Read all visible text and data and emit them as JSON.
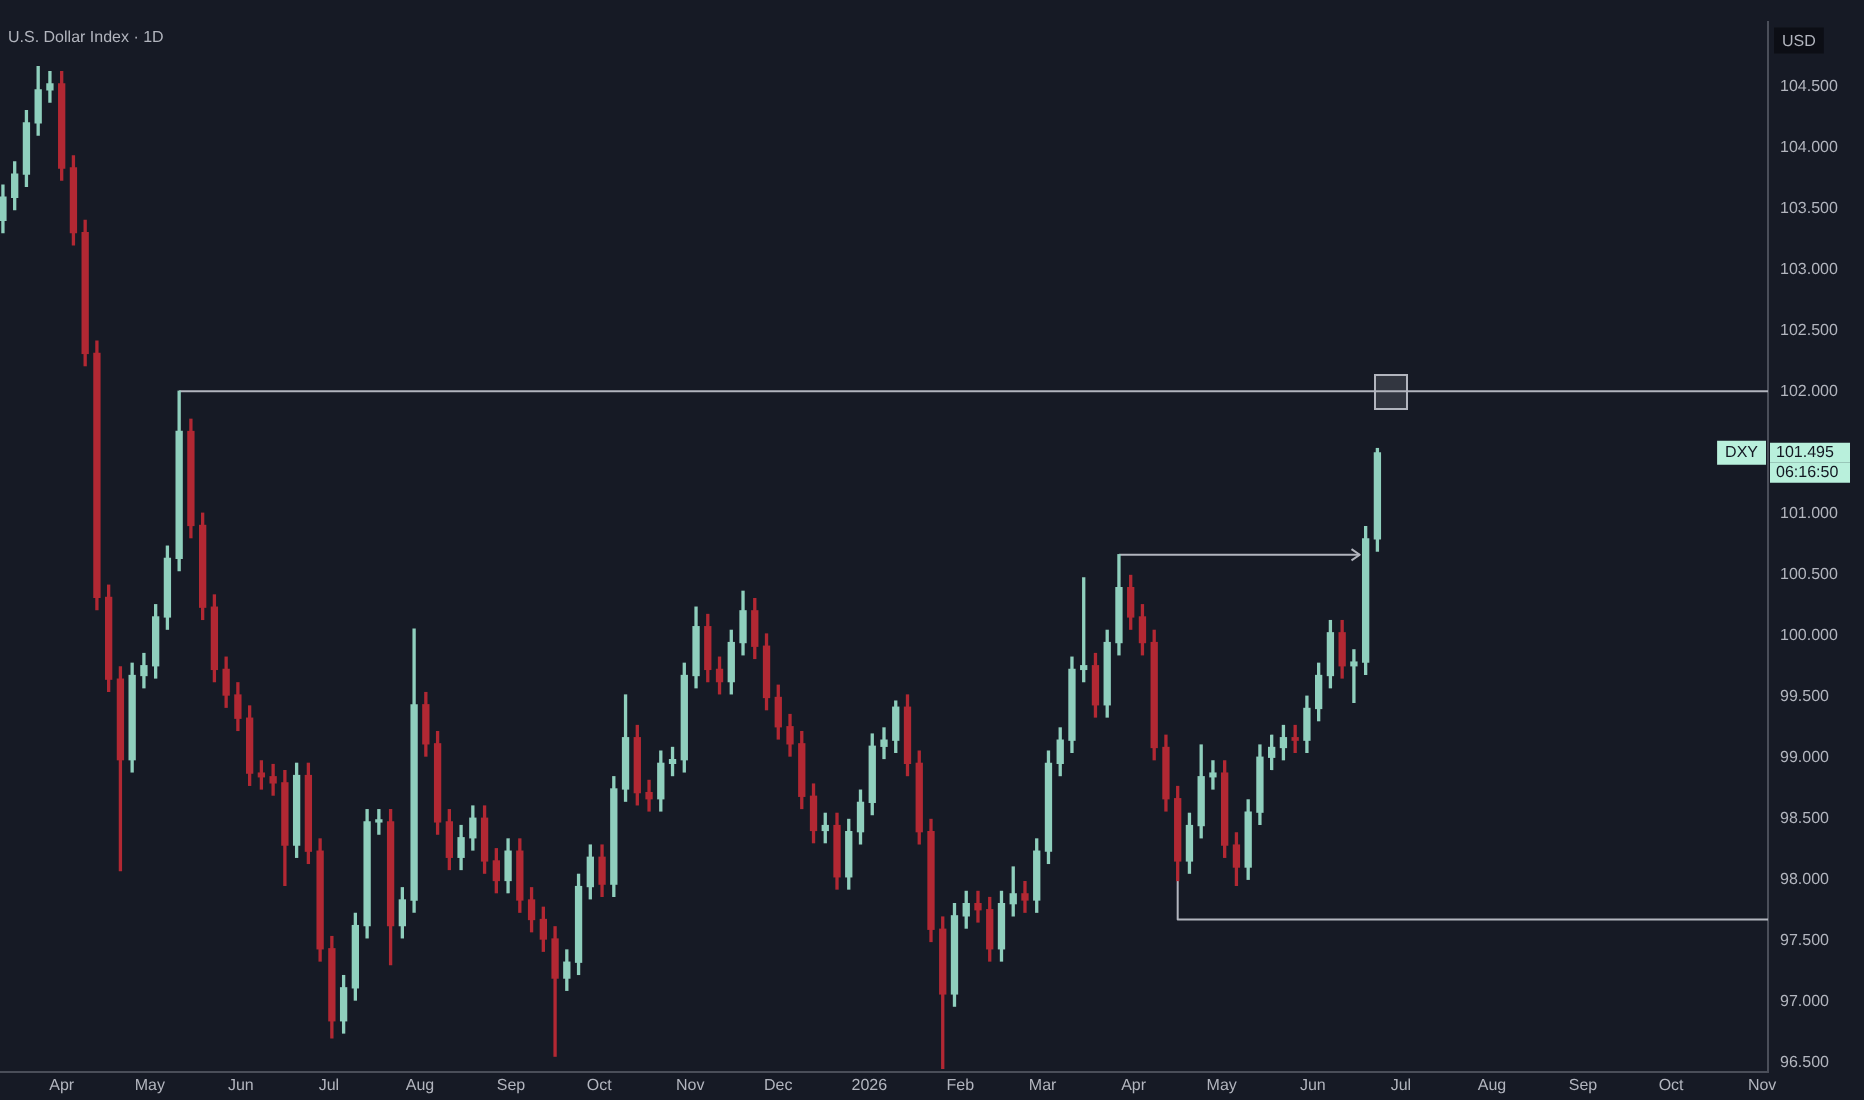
{
  "chart_data": {
    "type": "candlestick",
    "title": "U.S. Dollar Index · 1D",
    "ylabel": "USD",
    "x": [
      "2025-03-12",
      "2025-03-16",
      "2025-03-20",
      "2025-03-24",
      "2025-03-28",
      "2025-04-01",
      "2025-04-05",
      "2025-04-09",
      "2025-04-13",
      "2025-04-17",
      "2025-04-21",
      "2025-04-25",
      "2025-04-29",
      "2025-05-03",
      "2025-05-07",
      "2025-05-11",
      "2025-05-15",
      "2025-05-19",
      "2025-05-23",
      "2025-05-27",
      "2025-05-31",
      "2025-06-04",
      "2025-06-08",
      "2025-06-12",
      "2025-06-16",
      "2025-06-20",
      "2025-06-24",
      "2025-06-28",
      "2025-07-02",
      "2025-07-06",
      "2025-07-10",
      "2025-07-14",
      "2025-07-18",
      "2025-07-22",
      "2025-07-26",
      "2025-07-30",
      "2025-08-03",
      "2025-08-07",
      "2025-08-11",
      "2025-08-15",
      "2025-08-19",
      "2025-08-23",
      "2025-08-27",
      "2025-08-31",
      "2025-09-04",
      "2025-09-08",
      "2025-09-12",
      "2025-09-16",
      "2025-09-20",
      "2025-09-24",
      "2025-09-28",
      "2025-10-02",
      "2025-10-06",
      "2025-10-10",
      "2025-10-14",
      "2025-10-18",
      "2025-10-22",
      "2025-10-26",
      "2025-10-30",
      "2025-11-03",
      "2025-11-07",
      "2025-11-11",
      "2025-11-15",
      "2025-11-19",
      "2025-11-23",
      "2025-11-27",
      "2025-12-01",
      "2025-12-05",
      "2025-12-09",
      "2025-12-13",
      "2025-12-17",
      "2025-12-21",
      "2025-12-25",
      "2025-12-29",
      "2026-01-02",
      "2026-01-06",
      "2026-01-10",
      "2026-01-14",
      "2026-01-18",
      "2026-01-22",
      "2026-01-26",
      "2026-01-30",
      "2026-02-03",
      "2026-02-07",
      "2026-02-11",
      "2026-02-15",
      "2026-02-19",
      "2026-02-23",
      "2026-02-27",
      "2026-03-03",
      "2026-03-07",
      "2026-03-11",
      "2026-03-15",
      "2026-03-19",
      "2026-03-23",
      "2026-03-27",
      "2026-03-31",
      "2026-04-04",
      "2026-04-08",
      "2026-04-12",
      "2026-04-16",
      "2026-04-20",
      "2026-04-24",
      "2026-04-28",
      "2026-05-02",
      "2026-05-06",
      "2026-05-10",
      "2026-05-14",
      "2026-05-18",
      "2026-05-22",
      "2026-05-26",
      "2026-05-30",
      "2026-06-03",
      "2026-06-07",
      "2026-06-11",
      "2026-06-15",
      "2026-06-19",
      "2026-06-23"
    ],
    "ohlc": [
      [
        103.4,
        103.69,
        103.3,
        103.59
      ],
      [
        103.59,
        103.88,
        103.49,
        103.78
      ],
      [
        103.78,
        104.3,
        103.68,
        104.2
      ],
      [
        104.2,
        104.66,
        104.1,
        104.47
      ],
      [
        104.47,
        104.62,
        104.37,
        104.52
      ],
      [
        104.52,
        104.62,
        103.73,
        103.83
      ],
      [
        103.83,
        103.93,
        103.2,
        103.3
      ],
      [
        103.3,
        103.4,
        102.21,
        102.31
      ],
      [
        102.31,
        102.41,
        100.21,
        100.31
      ],
      [
        100.31,
        100.41,
        99.54,
        99.64
      ],
      [
        99.64,
        99.74,
        98.07,
        98.98
      ],
      [
        98.98,
        99.77,
        98.88,
        99.67
      ],
      [
        99.67,
        99.85,
        99.57,
        99.75
      ],
      [
        99.75,
        100.25,
        99.65,
        100.15
      ],
      [
        100.15,
        100.73,
        100.05,
        100.63
      ],
      [
        100.63,
        102.0,
        100.53,
        101.67
      ],
      [
        101.67,
        101.77,
        100.8,
        100.9
      ],
      [
        100.9,
        101.0,
        100.13,
        100.23
      ],
      [
        100.23,
        100.33,
        99.62,
        99.72
      ],
      [
        99.72,
        99.82,
        99.41,
        99.51
      ],
      [
        99.51,
        99.61,
        99.22,
        99.32
      ],
      [
        99.32,
        99.42,
        98.77,
        98.87
      ],
      [
        98.87,
        98.97,
        98.74,
        98.84
      ],
      [
        98.84,
        98.94,
        98.69,
        98.79
      ],
      [
        98.79,
        98.89,
        97.95,
        98.28
      ],
      [
        98.28,
        98.95,
        98.18,
        98.85
      ],
      [
        98.85,
        98.95,
        98.13,
        98.23
      ],
      [
        98.23,
        98.33,
        97.33,
        97.43
      ],
      [
        97.43,
        97.53,
        96.7,
        96.84
      ],
      [
        96.84,
        97.21,
        96.74,
        97.11
      ],
      [
        97.11,
        97.72,
        97.01,
        97.62
      ],
      [
        97.62,
        98.57,
        97.52,
        98.47
      ],
      [
        98.47,
        98.57,
        98.37,
        98.47
      ],
      [
        98.47,
        98.57,
        97.3,
        97.62
      ],
      [
        97.62,
        97.93,
        97.52,
        97.83
      ],
      [
        97.83,
        100.05,
        97.73,
        99.43
      ],
      [
        99.43,
        99.53,
        99.01,
        99.11
      ],
      [
        99.11,
        99.21,
        98.37,
        98.47
      ],
      [
        98.47,
        98.57,
        98.08,
        98.18
      ],
      [
        98.18,
        98.44,
        98.08,
        98.34
      ],
      [
        98.34,
        98.6,
        98.24,
        98.5
      ],
      [
        98.5,
        98.6,
        98.05,
        98.15
      ],
      [
        98.15,
        98.25,
        97.89,
        97.99
      ],
      [
        97.99,
        98.33,
        97.89,
        98.23
      ],
      [
        98.23,
        98.33,
        97.73,
        97.83
      ],
      [
        97.83,
        97.93,
        97.57,
        97.67
      ],
      [
        97.67,
        97.77,
        97.41,
        97.51
      ],
      [
        97.51,
        97.61,
        96.55,
        97.19
      ],
      [
        97.19,
        97.42,
        97.09,
        97.32
      ],
      [
        97.32,
        98.04,
        97.22,
        97.94
      ],
      [
        97.94,
        98.28,
        97.84,
        98.18
      ],
      [
        98.18,
        98.28,
        97.86,
        97.96
      ],
      [
        97.96,
        98.84,
        97.86,
        98.74
      ],
      [
        98.74,
        99.51,
        98.64,
        99.16
      ],
      [
        99.16,
        99.26,
        98.61,
        98.71
      ],
      [
        98.71,
        98.81,
        98.56,
        98.66
      ],
      [
        98.66,
        99.05,
        98.56,
        98.95
      ],
      [
        98.95,
        99.08,
        98.85,
        98.98
      ],
      [
        98.98,
        99.77,
        98.88,
        99.67
      ],
      [
        99.67,
        100.23,
        99.57,
        100.07
      ],
      [
        100.07,
        100.17,
        99.62,
        99.72
      ],
      [
        99.72,
        99.82,
        99.52,
        99.62
      ],
      [
        99.62,
        100.04,
        99.52,
        99.94
      ],
      [
        99.94,
        100.36,
        99.84,
        100.2
      ],
      [
        100.2,
        100.3,
        99.81,
        99.91
      ],
      [
        99.91,
        100.01,
        99.39,
        99.49
      ],
      [
        99.49,
        99.59,
        99.15,
        99.25
      ],
      [
        99.25,
        99.35,
        99.01,
        99.11
      ],
      [
        99.11,
        99.21,
        98.58,
        98.68
      ],
      [
        98.68,
        98.78,
        98.3,
        98.4
      ],
      [
        98.4,
        98.54,
        98.3,
        98.44
      ],
      [
        98.44,
        98.54,
        97.92,
        98.02
      ],
      [
        98.02,
        98.49,
        97.92,
        98.39
      ],
      [
        98.39,
        98.73,
        98.29,
        98.63
      ],
      [
        98.63,
        99.19,
        98.53,
        99.09
      ],
      [
        99.09,
        99.24,
        98.99,
        99.14
      ],
      [
        99.14,
        99.46,
        99.04,
        99.41
      ],
      [
        99.41,
        99.51,
        98.85,
        98.95
      ],
      [
        98.95,
        99.05,
        98.29,
        98.39
      ],
      [
        98.39,
        98.49,
        97.49,
        97.59
      ],
      [
        97.59,
        97.69,
        96.45,
        97.06
      ],
      [
        97.06,
        97.8,
        96.96,
        97.7
      ],
      [
        97.7,
        97.9,
        97.6,
        97.8
      ],
      [
        97.8,
        97.9,
        97.65,
        97.75
      ],
      [
        97.75,
        97.85,
        97.33,
        97.43
      ],
      [
        97.43,
        97.9,
        97.33,
        97.8
      ],
      [
        97.8,
        98.1,
        97.7,
        97.88
      ],
      [
        97.88,
        97.98,
        97.73,
        97.83
      ],
      [
        97.83,
        98.33,
        97.73,
        98.23
      ],
      [
        98.23,
        99.05,
        98.13,
        98.95
      ],
      [
        98.95,
        99.24,
        98.85,
        99.14
      ],
      [
        99.14,
        99.82,
        99.04,
        99.72
      ],
      [
        99.72,
        100.47,
        99.62,
        99.75
      ],
      [
        99.75,
        99.85,
        99.33,
        99.43
      ],
      [
        99.43,
        100.04,
        99.33,
        99.94
      ],
      [
        99.94,
        100.66,
        99.84,
        100.39
      ],
      [
        100.39,
        100.49,
        100.05,
        100.15
      ],
      [
        100.15,
        100.25,
        99.84,
        99.94
      ],
      [
        99.94,
        100.04,
        98.98,
        99.08
      ],
      [
        99.08,
        99.18,
        98.56,
        98.66
      ],
      [
        98.66,
        98.76,
        97.99,
        98.15
      ],
      [
        98.15,
        98.54,
        98.05,
        98.44
      ],
      [
        98.44,
        99.1,
        98.34,
        98.84
      ],
      [
        98.84,
        98.97,
        98.74,
        98.87
      ],
      [
        98.87,
        98.97,
        98.18,
        98.28
      ],
      [
        98.28,
        98.38,
        97.95,
        98.1
      ],
      [
        98.1,
        98.65,
        98.0,
        98.55
      ],
      [
        98.55,
        99.1,
        98.45,
        99.0
      ],
      [
        99.0,
        99.18,
        98.9,
        99.08
      ],
      [
        99.08,
        99.26,
        98.98,
        99.16
      ],
      [
        99.16,
        99.26,
        99.04,
        99.14
      ],
      [
        99.14,
        99.5,
        99.04,
        99.4
      ],
      [
        99.4,
        99.77,
        99.3,
        99.67
      ],
      [
        99.67,
        100.12,
        99.57,
        100.02
      ],
      [
        100.02,
        100.12,
        99.65,
        99.75
      ],
      [
        99.75,
        99.88,
        99.45,
        99.78
      ],
      [
        99.78,
        100.89,
        99.68,
        100.79
      ],
      [
        100.79,
        101.53,
        100.69,
        101.495
      ]
    ],
    "colors": [
      "#8fcfbd",
      "#8fcfbd",
      "#8fcfbd",
      "#8fcfbd",
      "#8fcfbd",
      "#b22833",
      "#b22833",
      "#b22833",
      "#b22833",
      "#b22833",
      "#b22833",
      "#8fcfbd",
      "#8fcfbd",
      "#8fcfbd",
      "#8fcfbd",
      "#8fcfbd",
      "#b22833",
      "#b22833",
      "#b22833",
      "#b22833",
      "#b22833",
      "#b22833",
      "#b22833",
      "#b22833",
      "#b22833",
      "#8fcfbd",
      "#b22833",
      "#b22833",
      "#b22833",
      "#8fcfbd",
      "#8fcfbd",
      "#8fcfbd",
      "#8fcfbd",
      "#b22833",
      "#8fcfbd",
      "#8fcfbd",
      "#b22833",
      "#b22833",
      "#b22833",
      "#8fcfbd",
      "#8fcfbd",
      "#b22833",
      "#b22833",
      "#8fcfbd",
      "#b22833",
      "#b22833",
      "#b22833",
      "#b22833",
      "#8fcfbd",
      "#8fcfbd",
      "#8fcfbd",
      "#b22833",
      "#8fcfbd",
      "#8fcfbd",
      "#b22833",
      "#b22833",
      "#8fcfbd",
      "#8fcfbd",
      "#8fcfbd",
      "#8fcfbd",
      "#b22833",
      "#b22833",
      "#8fcfbd",
      "#8fcfbd",
      "#b22833",
      "#b22833",
      "#b22833",
      "#b22833",
      "#b22833",
      "#b22833",
      "#8fcfbd",
      "#b22833",
      "#8fcfbd",
      "#8fcfbd",
      "#8fcfbd",
      "#8fcfbd",
      "#8fcfbd",
      "#b22833",
      "#b22833",
      "#b22833",
      "#b22833",
      "#8fcfbd",
      "#8fcfbd",
      "#b22833",
      "#b22833",
      "#8fcfbd",
      "#8fcfbd",
      "#b22833",
      "#8fcfbd",
      "#8fcfbd",
      "#8fcfbd",
      "#8fcfbd",
      "#8fcfbd",
      "#b22833",
      "#8fcfbd",
      "#8fcfbd",
      "#b22833",
      "#b22833",
      "#b22833",
      "#b22833",
      "#b22833",
      "#8fcfbd",
      "#8fcfbd",
      "#8fcfbd",
      "#b22833",
      "#b22833",
      "#8fcfbd",
      "#8fcfbd",
      "#8fcfbd",
      "#8fcfbd",
      "#b22833",
      "#8fcfbd",
      "#8fcfbd",
      "#8fcfbd",
      "#b22833",
      "#8fcfbd",
      "#8fcfbd",
      "#8fcfbd"
    ],
    "series": [
      {
        "type": "line",
        "color": "#b2b5be",
        "x": [
          "2025-05-11",
          "2026-11-03"
        ],
        "values": [
          102.0,
          102.0
        ]
      },
      {
        "type": "line",
        "color": "#b2b5be",
        "x": [
          "2026-03-27",
          "2026-06-17"
        ],
        "values": [
          100.66,
          100.66
        ]
      },
      {
        "type": "line",
        "color": "#b2b5be",
        "x": [
          "2026-04-16",
          "2026-04-16",
          "2026-11-03"
        ],
        "values": [
          97.99,
          97.67,
          97.67
        ]
      }
    ],
    "xlim": [
      "2025-03-11",
      "2026-11-03"
    ],
    "xticks": [
      {
        "value": "2025-04-01",
        "label": "Apr"
      },
      {
        "value": "2025-05-01",
        "label": "May"
      },
      {
        "value": "2025-06-01",
        "label": "Jun"
      },
      {
        "value": "2025-07-01",
        "label": "Jul"
      },
      {
        "value": "2025-08-01",
        "label": "Aug"
      },
      {
        "value": "2025-09-01",
        "label": "Sep"
      },
      {
        "value": "2025-10-01",
        "label": "Oct"
      },
      {
        "value": "2025-11-01",
        "label": "Nov"
      },
      {
        "value": "2025-12-01",
        "label": "Dec"
      },
      {
        "value": "2026-01-01",
        "label": "2026"
      },
      {
        "value": "2026-02-01",
        "label": "Feb"
      },
      {
        "value": "2026-03-01",
        "label": "Mar"
      },
      {
        "value": "2026-04-01",
        "label": "Apr"
      },
      {
        "value": "2026-05-01",
        "label": "May"
      },
      {
        "value": "2026-06-01",
        "label": "Jun"
      },
      {
        "value": "2026-07-01",
        "label": "Jul"
      },
      {
        "value": "2026-08-01",
        "label": "Aug"
      },
      {
        "value": "2026-09-01",
        "label": "Sep"
      },
      {
        "value": "2026-10-01",
        "label": "Oct"
      },
      {
        "value": "2026-11-01",
        "label": "Nov"
      }
    ],
    "ylim": [
      96.42,
      105.03
    ],
    "yticks": [
      {
        "value": 96.5,
        "label": "96.500"
      },
      {
        "value": 97,
        "label": "97.000"
      },
      {
        "value": 97.5,
        "label": "97.500"
      },
      {
        "value": 98,
        "label": "98.000"
      },
      {
        "value": 98.5,
        "label": "98.500"
      },
      {
        "value": 99,
        "label": "99.000"
      },
      {
        "value": 99.5,
        "label": "99.500"
      },
      {
        "value": 100,
        "label": "100.000"
      },
      {
        "value": 100.5,
        "label": "100.500"
      },
      {
        "value": 101,
        "label": "101.000"
      },
      {
        "value": 102,
        "label": "102.000"
      },
      {
        "value": 102.5,
        "label": "102.500"
      },
      {
        "value": 103,
        "label": "103.000"
      },
      {
        "value": 103.5,
        "label": "103.500"
      },
      {
        "value": 104,
        "label": "104.000"
      },
      {
        "value": 104.5,
        "label": "104.500"
      }
    ],
    "annotations": [
      {
        "text": "DXY",
        "y": 101.495
      },
      "101.495",
      "06:16:50"
    ],
    "legend": false,
    "grid": false
  }
}
